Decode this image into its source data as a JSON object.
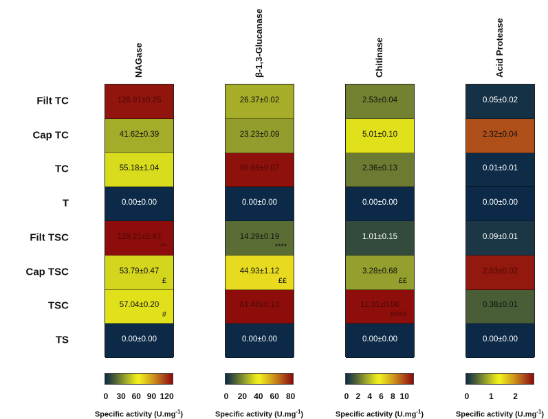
{
  "chart_data": {
    "type": "heatmap",
    "rows": [
      "Filt TC",
      "Cap TC",
      "TC",
      "T",
      "Filt TSC",
      "Cap TSC",
      "TSC",
      "TS"
    ],
    "colorbar_title": "Specific activity (U.mg-1)",
    "colorbar_title_main": "Specific activity (U.mg",
    "colorbar_title_sup": "-1",
    "colorbar_title_end": ")",
    "colormap": [
      "#0c2a48",
      "#4e6236",
      "#9aa42c",
      "#e6e61a",
      "#d09a1a",
      "#b0501a",
      "#8b0a0a"
    ],
    "panels": [
      {
        "title": "NAGase",
        "range": [
          0,
          130
        ],
        "ticks": [
          "0",
          "30",
          "60",
          "90",
          "120"
        ],
        "values": [
          126.91,
          41.62,
          55.18,
          0,
          129.21,
          53.79,
          57.04,
          0
        ],
        "labels": [
          "126.91±0.25",
          "41.62±0.39",
          "55.18±1.04",
          "0.00±0.00",
          "129.21±2.87",
          "53.79±0.47",
          "57.04±0.20",
          "0.00±0.00"
        ],
        "marks": [
          "",
          "",
          "",
          "",
          "**",
          "£",
          "#",
          ""
        ]
      },
      {
        "title": "β-1,3-Glucanase",
        "range": [
          0,
          82
        ],
        "ticks": [
          "0",
          "20",
          "40",
          "60",
          "80"
        ],
        "values": [
          26.37,
          23.23,
          80.69,
          0,
          14.29,
          44.93,
          81.48,
          0
        ],
        "labels": [
          "26.37±0.02",
          "23.23±0.09",
          "80.69±0.07",
          "0.00±0.00",
          "14.29±0.19",
          "44.93±1.12",
          "81.48±0.13",
          "0.00±0.00"
        ],
        "marks": [
          "",
          "",
          "",
          "",
          "****",
          "££",
          "",
          ""
        ]
      },
      {
        "title": "Chitinase",
        "range": [
          0,
          11.4
        ],
        "ticks": [
          "0",
          "2",
          "4",
          "6",
          "8",
          "10"
        ],
        "values": [
          2.53,
          5.01,
          2.36,
          0,
          1.01,
          3.28,
          11.31,
          0
        ],
        "labels": [
          "2.53±0.04",
          "5.01±0.10",
          "2.36±0.13",
          "0.00±0.00",
          "1.01±0.15",
          "3.28±0.68",
          "11.31±0.06",
          "0.00±0.00"
        ],
        "marks": [
          "",
          "",
          "",
          "",
          "",
          "££",
          "####",
          ""
        ]
      },
      {
        "title": "Acid Protease",
        "range": [
          0,
          2.72
        ],
        "ticks": [
          "0",
          "1",
          "2"
        ],
        "values": [
          0.05,
          2.32,
          0.01,
          0,
          0.09,
          2.63,
          0.38,
          0
        ],
        "labels": [
          "0.05±0.02",
          "2.32±0.04",
          "0.01±0.01",
          "0.00±0.00",
          "0.09±0.01",
          "2.63±0.02",
          "0.38±0.01",
          "0.00±0.00"
        ],
        "marks": [
          "",
          "",
          "",
          "",
          "",
          "",
          "",
          ""
        ]
      }
    ]
  }
}
